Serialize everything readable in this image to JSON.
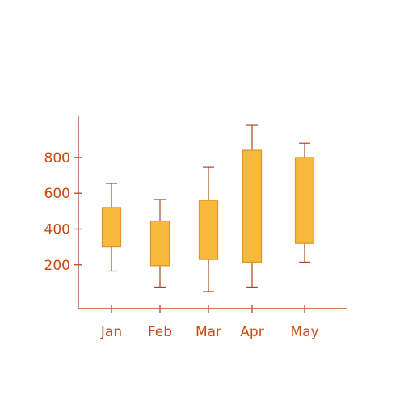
{
  "chart_data": {
    "type": "candlestick",
    "categories": [
      "Jan",
      "Feb",
      "Mar",
      "Apr",
      "May"
    ],
    "boxes": [
      {
        "category": "Jan",
        "low": 165,
        "box_low": 300,
        "box_high": 520,
        "high": 655
      },
      {
        "category": "Feb",
        "low": 75,
        "box_low": 195,
        "box_high": 445,
        "high": 565
      },
      {
        "category": "Mar",
        "low": 50,
        "box_low": 230,
        "box_high": 560,
        "high": 745
      },
      {
        "category": "Apr",
        "low": 75,
        "box_low": 215,
        "box_high": 840,
        "high": 980
      },
      {
        "category": "May",
        "low": 215,
        "box_low": 320,
        "box_high": 800,
        "high": 880
      }
    ],
    "y_ticks": [
      200,
      400,
      600,
      800
    ],
    "ylim": [
      -45,
      1030
    ],
    "grid": false,
    "colors": {
      "box_fill": "#f6b93b",
      "box_stroke": "#e0922a",
      "axis": "#b5542a",
      "labels": "#cc4a10"
    }
  }
}
